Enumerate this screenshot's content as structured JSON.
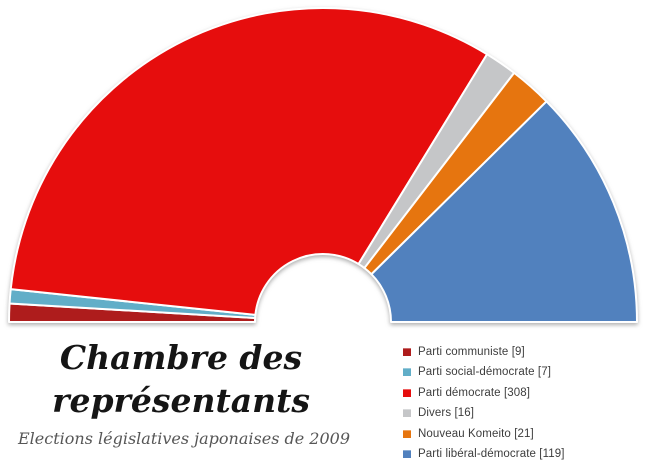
{
  "title": {
    "line1": "Chambre des",
    "line2": "représentants",
    "subtitle": "Elections législatives japonaises de 2009",
    "title_color": "#151515",
    "subtitle_color": "#565656"
  },
  "chart_data": {
    "type": "pie",
    "variant": "half-donut-parliament",
    "title": "Chambre des représentants",
    "subtitle": "Elections législatives japonaises de 2009",
    "total_seats": 480,
    "semicircle_degrees": 180,
    "slice_border_color": "#ffffff",
    "legend_position": "bottom-right",
    "parties": [
      {
        "name": "Parti communiste",
        "seats": 9,
        "color": "#ae1c1c",
        "label": "Parti communiste [9]"
      },
      {
        "name": "Parti social-démocrate",
        "seats": 7,
        "color": "#61aec8",
        "label": "Parti social-démocrate [7]"
      },
      {
        "name": "Parti démocrate",
        "seats": 308,
        "color": "#e60d0d",
        "label": "Parti démocrate [308]"
      },
      {
        "name": "Divers",
        "seats": 16,
        "color": "#c5c6c8",
        "label": "Divers [16]"
      },
      {
        "name": "Nouveau Komeito",
        "seats": 21,
        "color": "#e6750f",
        "label": "Nouveau Komeito [21]"
      },
      {
        "name": "Parti libéral-démocrate",
        "seats": 119,
        "color": "#5181be",
        "label": "Parti libéral-démocrate [119]"
      }
    ]
  }
}
